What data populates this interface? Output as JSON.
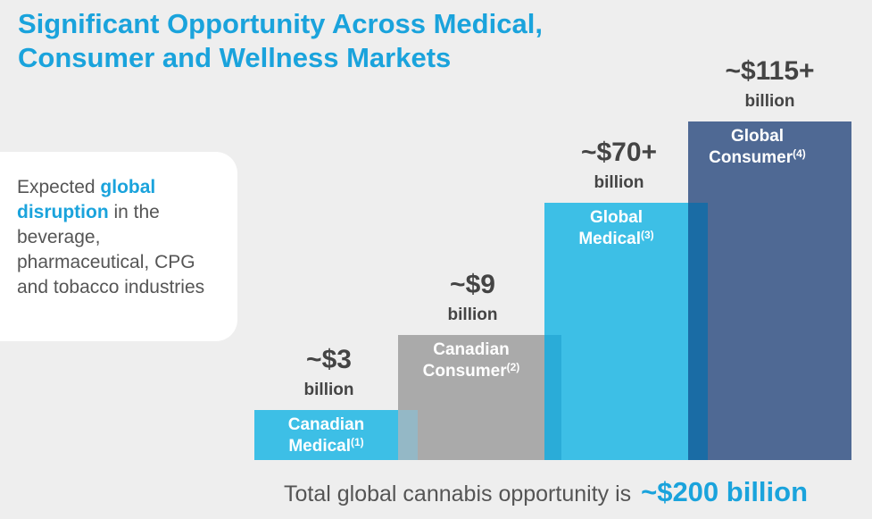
{
  "title": {
    "line1": "Significant Opportunity Across Medical,",
    "line2": "Consumer and Wellness Markets"
  },
  "callout": {
    "pre": "Expected ",
    "highlight": "global disruption",
    "post": " in the beverage, pharmaceutical, CPG and tobacco industries"
  },
  "chart_data": {
    "type": "bar",
    "title": "Significant Opportunity Across Medical, Consumer and Wellness Markets",
    "categories": [
      "Canadian Medical(1)",
      "Canadian Consumer(2)",
      "Global Medical(3)",
      "Global Consumer(4)"
    ],
    "values": [
      3,
      9,
      70,
      115
    ],
    "unit": "billion USD",
    "bars": [
      {
        "line1": "Canadian",
        "line2": "Medical",
        "note": "(1)",
        "value_label": "~$3",
        "unit_label": "billion",
        "value": 3,
        "color": "#3dbfe6"
      },
      {
        "line1": "Canadian",
        "line2": "Consumer",
        "note": "(2)",
        "value_label": "~$9",
        "unit_label": "billion",
        "value": 9,
        "color": "#aaaaaa"
      },
      {
        "line1": "Global",
        "line2": "Medical",
        "note": "(3)",
        "value_label": "~$70+",
        "unit_label": "billion",
        "value": 70,
        "color": "#3dbfe6"
      },
      {
        "line1": "Global",
        "line2": "Consumer",
        "note": "(4)",
        "value_label": "~$115+",
        "unit_label": "billion",
        "value": 115,
        "color": "#4f6994"
      }
    ],
    "overlap_color": "#1a6ca5",
    "overlap_colors": [
      "#94b8c6",
      "#2aacd8",
      "#1a6ca5"
    ],
    "xlabel": "",
    "ylabel": "",
    "ylim": [
      0,
      115
    ],
    "grid": false,
    "legend": "none"
  },
  "footer": {
    "text": "Total global cannabis opportunity is",
    "amount": "~$200 billion"
  }
}
